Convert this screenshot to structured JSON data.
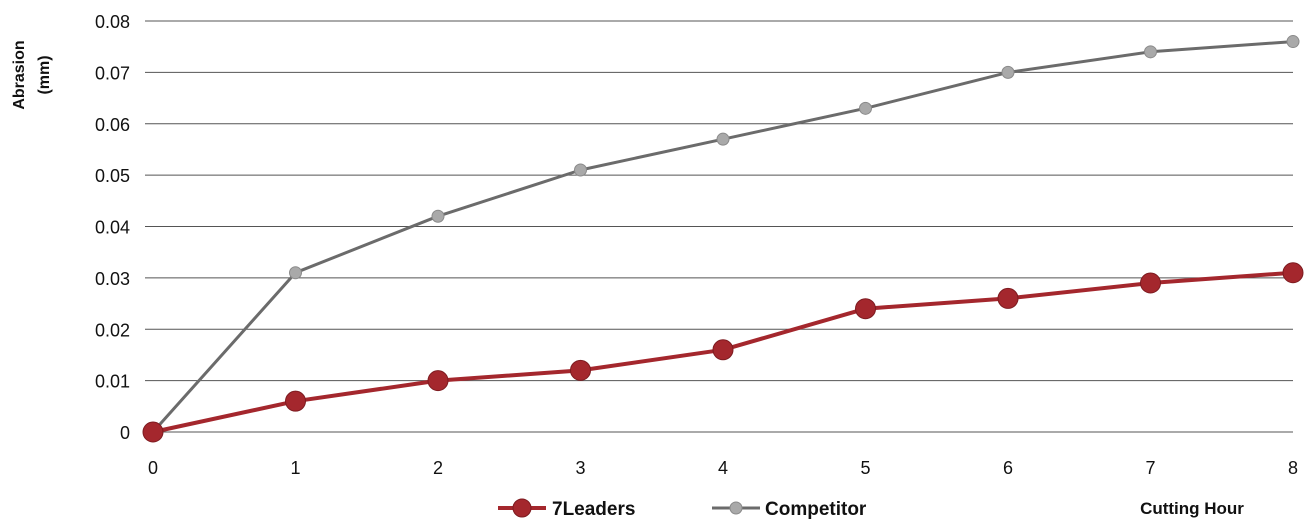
{
  "chart_data": {
    "type": "line",
    "x": [
      0,
      1,
      2,
      3,
      4,
      5,
      6,
      7,
      8
    ],
    "xlabel": "Cutting Hour",
    "ylabel_line1": "Abrasion",
    "ylabel_line2": "(mm)",
    "xlim": [
      0,
      8
    ],
    "ylim": [
      0,
      0.08
    ],
    "yticks": [
      "0",
      "0.01",
      "0.02",
      "0.03",
      "0.04",
      "0.05",
      "0.06",
      "0.07",
      "0.08"
    ],
    "xticks": [
      "0",
      "1",
      "2",
      "3",
      "4",
      "5",
      "6",
      "7",
      "8"
    ],
    "grid": true,
    "legend_position": "bottom",
    "series": [
      {
        "name": "7Leaders",
        "color": "#a4272d",
        "values": [
          0,
          0.006,
          0.01,
          0.012,
          0.016,
          0.024,
          0.026,
          0.029,
          0.031
        ]
      },
      {
        "name": "Competitor",
        "color": "#6b6b6b",
        "values": [
          0,
          0.031,
          0.042,
          0.051,
          0.057,
          0.063,
          0.07,
          0.074,
          0.076
        ]
      }
    ]
  }
}
